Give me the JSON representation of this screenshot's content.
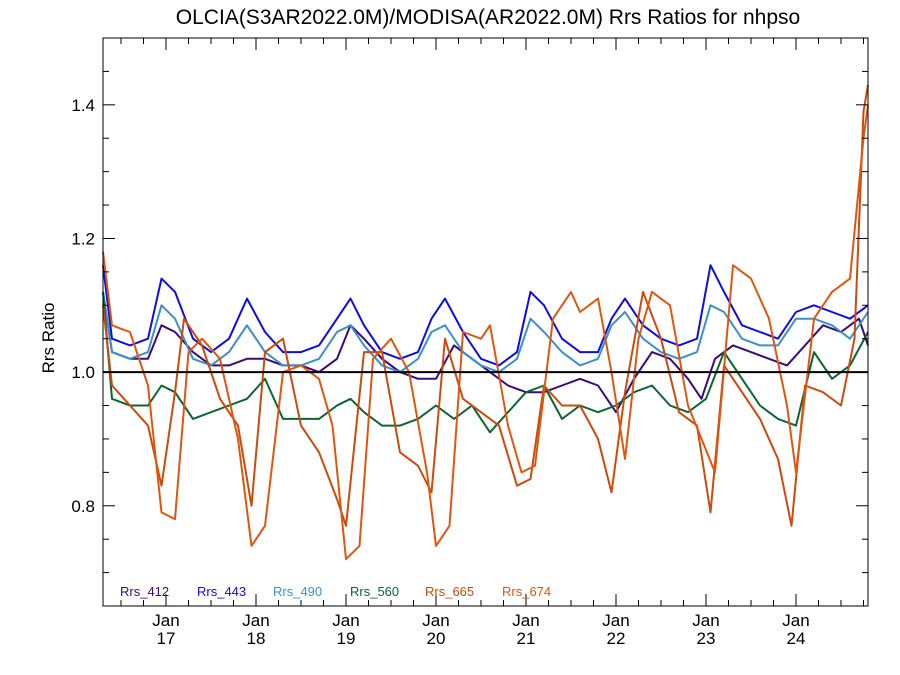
{
  "chart_data": {
    "type": "line",
    "title": "OLCIA(S3AR2022.0M)/MODISA(AR2022.0M)  Rrs Ratios for nhpso",
    "xlabel": "",
    "ylabel": "Rrs Ratio",
    "xlim": [
      16.3,
      24.8
    ],
    "ylim": [
      0.65,
      1.5
    ],
    "x_ticks": [
      {
        "value": 17,
        "line1": "Jan",
        "line2": "17"
      },
      {
        "value": 18,
        "line1": "Jan",
        "line2": "18"
      },
      {
        "value": 19,
        "line1": "Jan",
        "line2": "19"
      },
      {
        "value": 20,
        "line1": "Jan",
        "line2": "20"
      },
      {
        "value": 21,
        "line1": "Jan",
        "line2": "21"
      },
      {
        "value": 22,
        "line1": "Jan",
        "line2": "22"
      },
      {
        "value": 23,
        "line1": "Jan",
        "line2": "23"
      },
      {
        "value": 24,
        "line1": "Jan",
        "line2": "24"
      }
    ],
    "y_ticks": [
      {
        "value": 0.8,
        "label": "0.8"
      },
      {
        "value": 1.0,
        "label": "1.0"
      },
      {
        "value": 1.2,
        "label": "1.2"
      },
      {
        "value": 1.4,
        "label": "1.4"
      }
    ],
    "reference_line": 1.0,
    "legend_placement": "bottom-left",
    "grid": false,
    "series": [
      {
        "name": "Rrs_412",
        "color": "#3b0a7a",
        "points": [
          [
            16.3,
            1.12
          ],
          [
            16.4,
            1.03
          ],
          [
            16.6,
            1.02
          ],
          [
            16.8,
            1.02
          ],
          [
            16.95,
            1.07
          ],
          [
            17.1,
            1.06
          ],
          [
            17.3,
            1.03
          ],
          [
            17.5,
            1.01
          ],
          [
            17.7,
            1.01
          ],
          [
            17.9,
            1.02
          ],
          [
            18.1,
            1.02
          ],
          [
            18.3,
            1.01
          ],
          [
            18.5,
            1.01
          ],
          [
            18.7,
            1.0
          ],
          [
            18.9,
            1.02
          ],
          [
            19.05,
            1.07
          ],
          [
            19.2,
            1.05
          ],
          [
            19.4,
            1.02
          ],
          [
            19.6,
            1.0
          ],
          [
            19.8,
            0.99
          ],
          [
            20.0,
            0.99
          ],
          [
            20.2,
            1.04
          ],
          [
            20.4,
            1.02
          ],
          [
            20.6,
            1.0
          ],
          [
            20.8,
            0.98
          ],
          [
            21.0,
            0.97
          ],
          [
            21.2,
            0.97
          ],
          [
            21.4,
            0.98
          ],
          [
            21.6,
            0.99
          ],
          [
            21.8,
            0.98
          ],
          [
            22.0,
            0.94
          ],
          [
            22.2,
            0.99
          ],
          [
            22.4,
            1.03
          ],
          [
            22.6,
            1.02
          ],
          [
            22.8,
            0.99
          ],
          [
            22.95,
            0.96
          ],
          [
            23.1,
            1.02
          ],
          [
            23.3,
            1.04
          ],
          [
            23.5,
            1.03
          ],
          [
            23.7,
            1.02
          ],
          [
            23.9,
            1.01
          ],
          [
            24.1,
            1.04
          ],
          [
            24.3,
            1.07
          ],
          [
            24.5,
            1.06
          ],
          [
            24.7,
            1.08
          ],
          [
            24.8,
            1.04
          ]
        ]
      },
      {
        "name": "Rrs_443",
        "color": "#0d0de0",
        "points": [
          [
            16.3,
            1.16
          ],
          [
            16.4,
            1.05
          ],
          [
            16.6,
            1.04
          ],
          [
            16.8,
            1.05
          ],
          [
            16.95,
            1.14
          ],
          [
            17.1,
            1.12
          ],
          [
            17.3,
            1.05
          ],
          [
            17.5,
            1.03
          ],
          [
            17.7,
            1.05
          ],
          [
            17.9,
            1.11
          ],
          [
            18.1,
            1.06
          ],
          [
            18.3,
            1.03
          ],
          [
            18.5,
            1.03
          ],
          [
            18.7,
            1.04
          ],
          [
            18.9,
            1.08
          ],
          [
            19.05,
            1.11
          ],
          [
            19.2,
            1.07
          ],
          [
            19.4,
            1.03
          ],
          [
            19.6,
            1.02
          ],
          [
            19.8,
            1.03
          ],
          [
            19.95,
            1.08
          ],
          [
            20.1,
            1.11
          ],
          [
            20.3,
            1.06
          ],
          [
            20.5,
            1.02
          ],
          [
            20.7,
            1.01
          ],
          [
            20.9,
            1.03
          ],
          [
            21.05,
            1.12
          ],
          [
            21.2,
            1.1
          ],
          [
            21.4,
            1.05
          ],
          [
            21.6,
            1.03
          ],
          [
            21.8,
            1.03
          ],
          [
            21.95,
            1.08
          ],
          [
            22.1,
            1.11
          ],
          [
            22.3,
            1.07
          ],
          [
            22.5,
            1.05
          ],
          [
            22.7,
            1.04
          ],
          [
            22.9,
            1.05
          ],
          [
            23.05,
            1.16
          ],
          [
            23.2,
            1.12
          ],
          [
            23.4,
            1.07
          ],
          [
            23.6,
            1.06
          ],
          [
            23.8,
            1.05
          ],
          [
            24.0,
            1.09
          ],
          [
            24.2,
            1.1
          ],
          [
            24.4,
            1.09
          ],
          [
            24.6,
            1.08
          ],
          [
            24.8,
            1.1
          ]
        ]
      },
      {
        "name": "Rrs_490",
        "color": "#3a90c8",
        "points": [
          [
            16.3,
            1.12
          ],
          [
            16.4,
            1.03
          ],
          [
            16.6,
            1.02
          ],
          [
            16.8,
            1.03
          ],
          [
            16.95,
            1.1
          ],
          [
            17.1,
            1.08
          ],
          [
            17.3,
            1.02
          ],
          [
            17.5,
            1.01
          ],
          [
            17.7,
            1.03
          ],
          [
            17.9,
            1.07
          ],
          [
            18.1,
            1.03
          ],
          [
            18.3,
            1.01
          ],
          [
            18.5,
            1.01
          ],
          [
            18.7,
            1.02
          ],
          [
            18.9,
            1.06
          ],
          [
            19.05,
            1.07
          ],
          [
            19.2,
            1.04
          ],
          [
            19.4,
            1.01
          ],
          [
            19.6,
            1.0
          ],
          [
            19.8,
            1.02
          ],
          [
            19.95,
            1.06
          ],
          [
            20.1,
            1.07
          ],
          [
            20.3,
            1.03
          ],
          [
            20.5,
            1.01
          ],
          [
            20.7,
            1.0
          ],
          [
            20.9,
            1.02
          ],
          [
            21.05,
            1.08
          ],
          [
            21.2,
            1.06
          ],
          [
            21.4,
            1.03
          ],
          [
            21.6,
            1.01
          ],
          [
            21.8,
            1.02
          ],
          [
            21.95,
            1.07
          ],
          [
            22.1,
            1.09
          ],
          [
            22.3,
            1.05
          ],
          [
            22.5,
            1.03
          ],
          [
            22.7,
            1.02
          ],
          [
            22.9,
            1.03
          ],
          [
            23.05,
            1.1
          ],
          [
            23.2,
            1.09
          ],
          [
            23.4,
            1.05
          ],
          [
            23.6,
            1.04
          ],
          [
            23.8,
            1.04
          ],
          [
            24.0,
            1.08
          ],
          [
            24.2,
            1.08
          ],
          [
            24.4,
            1.07
          ],
          [
            24.6,
            1.05
          ],
          [
            24.8,
            1.09
          ]
        ]
      },
      {
        "name": "Rrs_560",
        "color": "#0a6630",
        "points": [
          [
            16.3,
            1.12
          ],
          [
            16.4,
            0.96
          ],
          [
            16.6,
            0.95
          ],
          [
            16.8,
            0.95
          ],
          [
            16.95,
            0.98
          ],
          [
            17.1,
            0.97
          ],
          [
            17.3,
            0.93
          ],
          [
            17.5,
            0.94
          ],
          [
            17.7,
            0.95
          ],
          [
            17.9,
            0.96
          ],
          [
            18.1,
            0.99
          ],
          [
            18.3,
            0.93
          ],
          [
            18.5,
            0.93
          ],
          [
            18.7,
            0.93
          ],
          [
            18.9,
            0.95
          ],
          [
            19.05,
            0.96
          ],
          [
            19.2,
            0.94
          ],
          [
            19.4,
            0.92
          ],
          [
            19.6,
            0.92
          ],
          [
            19.8,
            0.93
          ],
          [
            20.0,
            0.95
          ],
          [
            20.2,
            0.93
          ],
          [
            20.4,
            0.95
          ],
          [
            20.6,
            0.91
          ],
          [
            20.8,
            0.94
          ],
          [
            21.0,
            0.97
          ],
          [
            21.2,
            0.98
          ],
          [
            21.4,
            0.93
          ],
          [
            21.6,
            0.95
          ],
          [
            21.8,
            0.94
          ],
          [
            22.0,
            0.95
          ],
          [
            22.2,
            0.97
          ],
          [
            22.4,
            0.98
          ],
          [
            22.6,
            0.95
          ],
          [
            22.8,
            0.94
          ],
          [
            23.0,
            0.96
          ],
          [
            23.2,
            1.03
          ],
          [
            23.4,
            0.99
          ],
          [
            23.6,
            0.95
          ],
          [
            23.8,
            0.93
          ],
          [
            24.0,
            0.92
          ],
          [
            24.2,
            1.03
          ],
          [
            24.4,
            0.99
          ],
          [
            24.6,
            1.01
          ],
          [
            24.8,
            1.06
          ]
        ]
      },
      {
        "name": "Rrs_665",
        "color": "#cc4a0a",
        "points": [
          [
            16.3,
            1.1
          ],
          [
            16.4,
            0.98
          ],
          [
            16.6,
            0.95
          ],
          [
            16.8,
            0.92
          ],
          [
            16.95,
            0.83
          ],
          [
            17.1,
            0.97
          ],
          [
            17.2,
            1.08
          ],
          [
            17.4,
            1.04
          ],
          [
            17.6,
            0.96
          ],
          [
            17.8,
            0.92
          ],
          [
            17.95,
            0.8
          ],
          [
            18.1,
            1.03
          ],
          [
            18.3,
            1.05
          ],
          [
            18.5,
            0.92
          ],
          [
            18.7,
            0.88
          ],
          [
            18.9,
            0.81
          ],
          [
            19.0,
            0.77
          ],
          [
            19.2,
            1.03
          ],
          [
            19.4,
            1.03
          ],
          [
            19.6,
            0.88
          ],
          [
            19.8,
            0.86
          ],
          [
            19.95,
            0.82
          ],
          [
            20.1,
            1.05
          ],
          [
            20.3,
            0.96
          ],
          [
            20.5,
            0.94
          ],
          [
            20.7,
            0.92
          ],
          [
            20.9,
            0.83
          ],
          [
            21.05,
            0.84
          ],
          [
            21.2,
            0.98
          ],
          [
            21.4,
            0.95
          ],
          [
            21.6,
            0.95
          ],
          [
            21.8,
            0.9
          ],
          [
            21.95,
            0.82
          ],
          [
            22.1,
            0.97
          ],
          [
            22.3,
            1.12
          ],
          [
            22.5,
            1.05
          ],
          [
            22.7,
            0.94
          ],
          [
            22.9,
            0.92
          ],
          [
            23.05,
            0.79
          ],
          [
            23.2,
            1.01
          ],
          [
            23.4,
            0.97
          ],
          [
            23.6,
            0.93
          ],
          [
            23.8,
            0.87
          ],
          [
            23.95,
            0.77
          ],
          [
            24.1,
            0.98
          ],
          [
            24.3,
            0.97
          ],
          [
            24.5,
            0.95
          ],
          [
            24.65,
            1.05
          ],
          [
            24.75,
            1.39
          ],
          [
            24.8,
            1.43
          ]
        ]
      },
      {
        "name": "Rrs_674",
        "color": "#e0560e",
        "points": [
          [
            16.3,
            1.18
          ],
          [
            16.4,
            1.07
          ],
          [
            16.6,
            1.06
          ],
          [
            16.8,
            0.98
          ],
          [
            16.95,
            0.79
          ],
          [
            17.1,
            0.78
          ],
          [
            17.25,
            1.03
          ],
          [
            17.4,
            1.05
          ],
          [
            17.6,
            1.02
          ],
          [
            17.8,
            0.9
          ],
          [
            17.95,
            0.74
          ],
          [
            18.1,
            0.77
          ],
          [
            18.3,
            1.0
          ],
          [
            18.5,
            1.01
          ],
          [
            18.7,
            0.99
          ],
          [
            18.85,
            0.92
          ],
          [
            19.0,
            0.72
          ],
          [
            19.15,
            0.74
          ],
          [
            19.3,
            1.02
          ],
          [
            19.5,
            1.05
          ],
          [
            19.7,
            1.0
          ],
          [
            19.9,
            0.85
          ],
          [
            20.0,
            0.74
          ],
          [
            20.15,
            0.77
          ],
          [
            20.3,
            1.06
          ],
          [
            20.5,
            1.05
          ],
          [
            20.6,
            1.07
          ],
          [
            20.8,
            0.92
          ],
          [
            20.95,
            0.85
          ],
          [
            21.1,
            0.86
          ],
          [
            21.3,
            1.08
          ],
          [
            21.5,
            1.12
          ],
          [
            21.6,
            1.09
          ],
          [
            21.8,
            1.11
          ],
          [
            21.95,
            1.0
          ],
          [
            22.1,
            0.87
          ],
          [
            22.25,
            1.05
          ],
          [
            22.4,
            1.12
          ],
          [
            22.6,
            1.1
          ],
          [
            22.8,
            0.95
          ],
          [
            22.95,
            0.9
          ],
          [
            23.1,
            0.85
          ],
          [
            23.3,
            1.16
          ],
          [
            23.5,
            1.14
          ],
          [
            23.7,
            1.08
          ],
          [
            23.9,
            0.95
          ],
          [
            24.0,
            0.85
          ],
          [
            24.2,
            1.08
          ],
          [
            24.4,
            1.12
          ],
          [
            24.6,
            1.14
          ],
          [
            24.75,
            1.35
          ],
          [
            24.8,
            1.4
          ]
        ]
      }
    ]
  }
}
